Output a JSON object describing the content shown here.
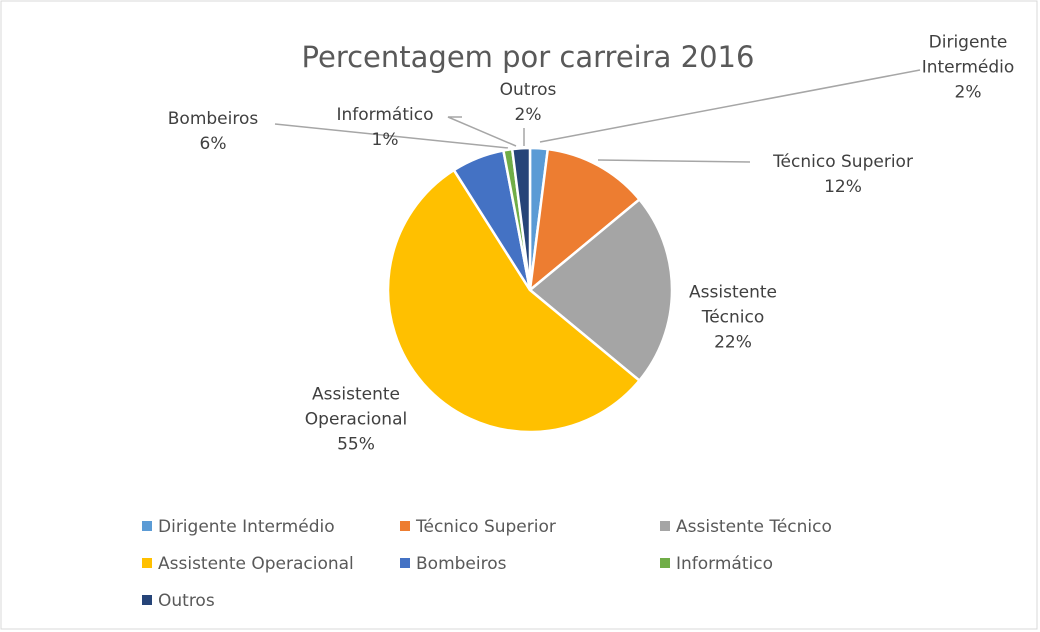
{
  "chart_data": {
    "type": "pie",
    "title": "Percentagem por carreira 2016",
    "categories": [
      "Dirigente Intermédio",
      "Técnico Superior",
      "Assistente Técnico",
      "Assistente Operacional",
      "Bombeiros",
      "Informático",
      "Outros"
    ],
    "values": [
      2,
      12,
      22,
      55,
      6,
      1,
      2
    ],
    "value_labels": [
      "2%",
      "12%",
      "22%",
      "55%",
      "6%",
      "1%",
      "2%"
    ],
    "colors": [
      "#5b9bd5",
      "#ed7d31",
      "#a5a5a5",
      "#ffc000",
      "#4472c4",
      "#70ad47",
      "#264478"
    ],
    "legend": "bottom"
  }
}
